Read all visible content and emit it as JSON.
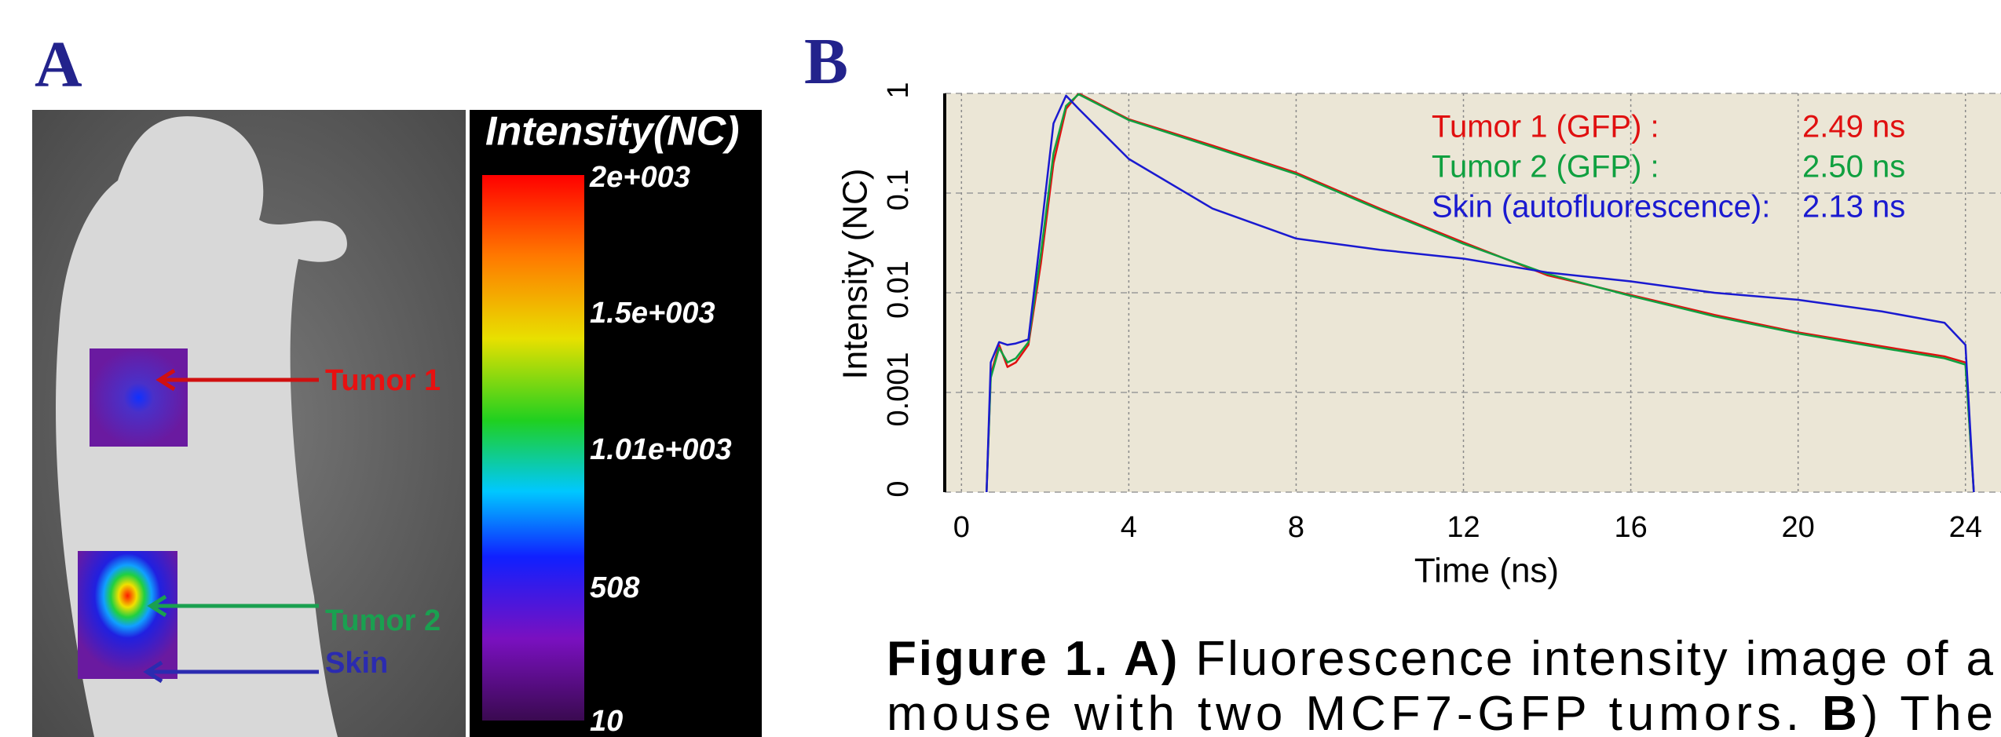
{
  "panel_a": {
    "label": "A",
    "colorbar_title": "Intensity(NC)",
    "colorbar_labels": [
      "2e+003",
      "1.5e+003",
      "1.01e+003",
      "508",
      "10"
    ],
    "annotations": [
      "Tumor 1",
      "Tumor 2",
      "Skin"
    ]
  },
  "panel_b_label": "B",
  "chart_data": {
    "type": "line",
    "xlabel": "Time (ns)",
    "ylabel": "Intensity (NC)",
    "log_y": true,
    "grid": true,
    "xlim": [
      -0.4,
      24.85
    ],
    "xticks": [
      0,
      4,
      8,
      12,
      16,
      20,
      24
    ],
    "ylim": [
      0.0001,
      1
    ],
    "yticks": [
      {
        "value": 0.0001,
        "label": "0"
      },
      0.001,
      0.01,
      0.1,
      1
    ],
    "x": [
      0.6,
      0.7,
      0.9,
      1.1,
      1.3,
      1.6,
      1.9,
      2.2,
      2.5,
      2.8,
      4,
      6,
      8,
      10,
      12,
      14,
      16,
      18,
      20,
      22,
      23.5,
      24,
      24.2
    ],
    "series": [
      {
        "name": "Tumor 1 (GFP) :",
        "annotation": "2.49 ns",
        "color": "#e01010",
        "values": [
          0.0001,
          0.0015,
          0.003,
          0.0018,
          0.002,
          0.003,
          0.02,
          0.2,
          0.7,
          1,
          0.55,
          0.3,
          0.16,
          0.07,
          0.032,
          0.015,
          0.0095,
          0.006,
          0.004,
          0.0029,
          0.0023,
          0.002,
          0.0001
        ]
      },
      {
        "name": "Tumor 2 (GFP) :",
        "annotation": "2.50 ns",
        "color": "#10a040",
        "values": [
          0.0001,
          0.0014,
          0.0028,
          0.002,
          0.0022,
          0.0032,
          0.025,
          0.25,
          0.75,
          0.98,
          0.54,
          0.29,
          0.155,
          0.068,
          0.031,
          0.0155,
          0.0093,
          0.0058,
          0.0039,
          0.0028,
          0.0022,
          0.0019,
          0.0001
        ]
      },
      {
        "name": "Skin (autofluorescence):",
        "annotation": "2.13 ns",
        "color": "#1a1ad0",
        "values": [
          0.0001,
          0.002,
          0.0032,
          0.003,
          0.0031,
          0.0034,
          0.04,
          0.5,
          0.95,
          0.7,
          0.22,
          0.07,
          0.035,
          0.027,
          0.022,
          0.016,
          0.013,
          0.01,
          0.0085,
          0.0065,
          0.005,
          0.003,
          0.0001
        ]
      }
    ]
  },
  "caption": {
    "lines": [
      [
        {
          "text": "Figure 1. A)",
          "bold": true
        },
        {
          "text": " Fluorescence intensity image of a",
          "bold": false
        }
      ],
      [
        {
          "text": "mouse with two MCF7-GFP tumors. ",
          "bold": false
        },
        {
          "text": "B",
          "bold": true
        },
        {
          "text": ") The",
          "bold": false
        }
      ]
    ]
  }
}
